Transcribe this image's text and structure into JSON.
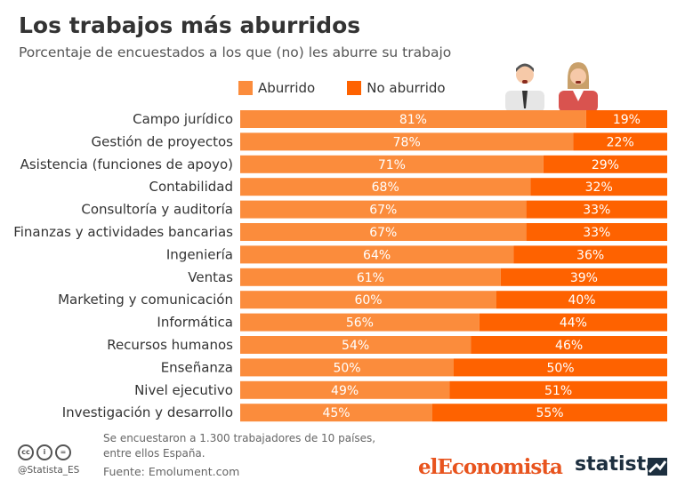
{
  "header": {
    "title": "Los trabajos más aburridos",
    "subtitle": "Porcentaje de encuestados a los que (no) les aburre su trabajo"
  },
  "legend": [
    {
      "label": "Aburrido",
      "color": "#fb8c3c"
    },
    {
      "label": "No aburrido",
      "color": "#fe6200"
    }
  ],
  "footer": {
    "note": "Se encuestaron a 1.300 trabajadores de 10 países, entre ellos España.",
    "source": "Fuente: Emolument.com",
    "handle": "@Statista_ES",
    "brand_left": "elEconomista",
    "brand_right": "statista"
  },
  "icons": [
    "cc-icon",
    "person-icon",
    "equals-icon",
    "businessman-icon",
    "businesswoman-icon",
    "statista-logo-icon"
  ],
  "chart_data": {
    "type": "bar",
    "orientation": "horizontal",
    "stacked": true,
    "categories": [
      "Campo jurídico",
      "Gestión de proyectos",
      "Asistencia (funciones de apoyo)",
      "Contabilidad",
      "Consultoría y auditoría",
      "Finanzas y actividades bancarias",
      "Ingeniería",
      "Ventas",
      "Marketing y comunicación",
      "Informática",
      "Recursos humanos",
      "Enseñanza",
      "Nivel ejecutivo",
      "Investigación y desarrollo"
    ],
    "series": [
      {
        "name": "Aburrido",
        "color": "#fb8c3c",
        "values": [
          81,
          78,
          71,
          68,
          67,
          67,
          64,
          61,
          60,
          56,
          54,
          50,
          49,
          45
        ]
      },
      {
        "name": "No aburrido",
        "color": "#fe6200",
        "values": [
          19,
          22,
          29,
          32,
          33,
          33,
          36,
          39,
          40,
          44,
          46,
          50,
          51,
          55
        ]
      }
    ],
    "value_suffix": "%",
    "xlim": [
      0,
      100
    ],
    "grid": false,
    "legend_position": "top"
  }
}
